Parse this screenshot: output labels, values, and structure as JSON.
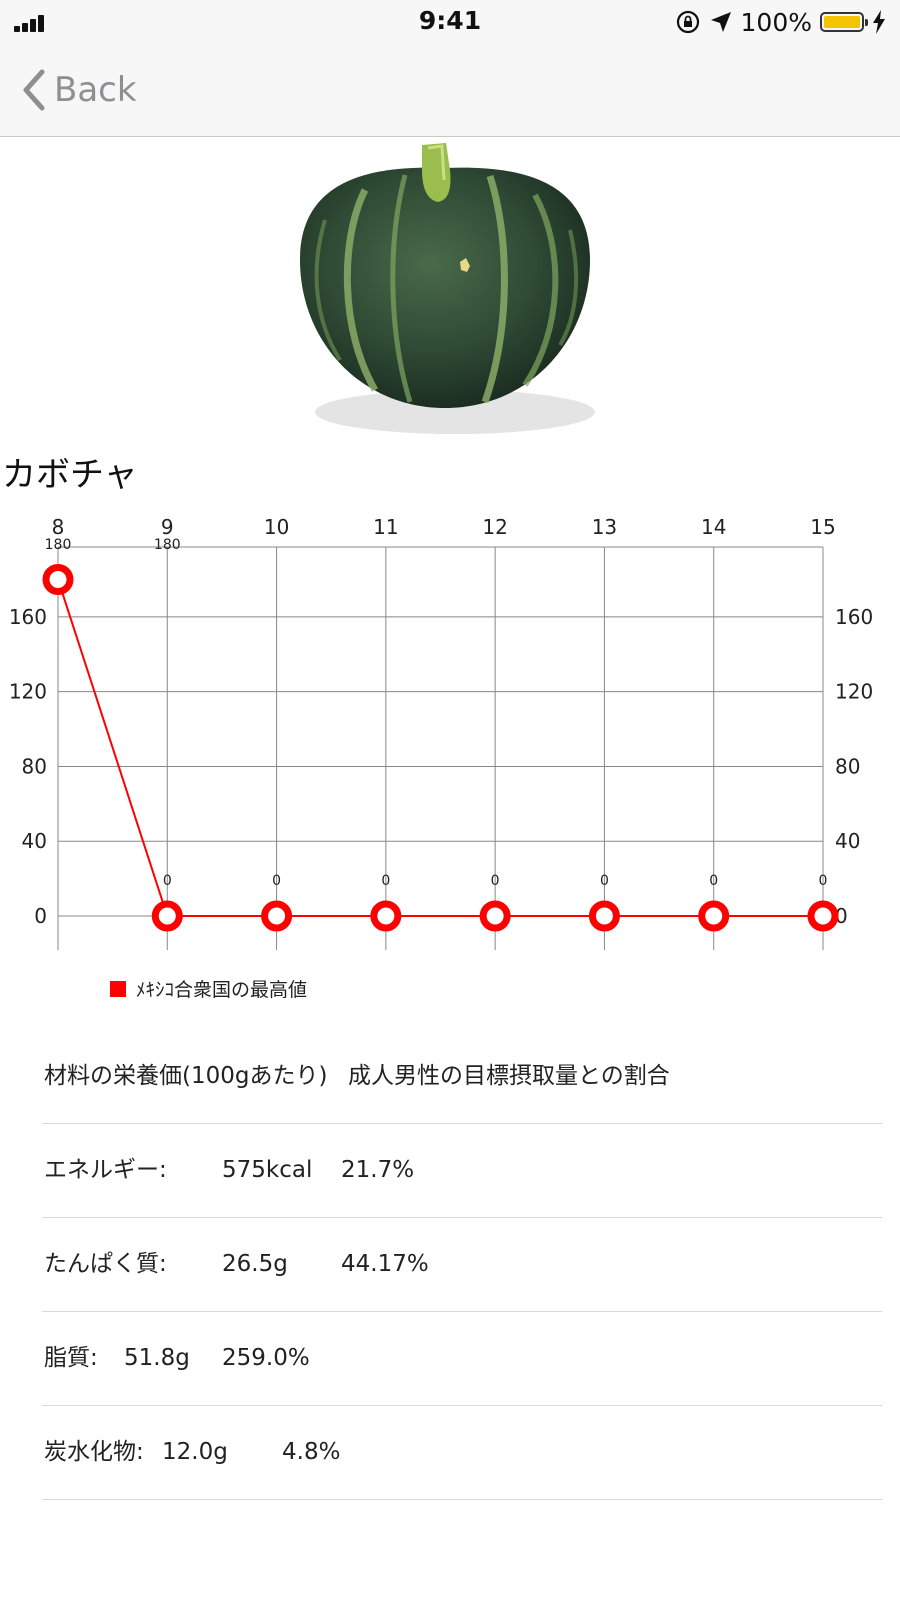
{
  "status_bar": {
    "time": "9:41",
    "battery_text": "100%",
    "battery_color": "#f5c400"
  },
  "nav": {
    "back_label": "Back"
  },
  "product": {
    "image_icon": "pumpkin-image",
    "title": "カボチャ"
  },
  "chart_data": {
    "type": "line",
    "x": [
      8,
      9,
      10,
      11,
      12,
      13,
      14,
      15
    ],
    "series": [
      {
        "name": "ﾒｷｼｺ合衆国の最高値",
        "values": [
          180,
          0,
          0,
          0,
          0,
          0,
          0,
          0
        ],
        "color": "#ff0000"
      }
    ],
    "data_labels": [
      "180",
      "0",
      "0",
      "0",
      "0",
      "0",
      "0",
      "0"
    ],
    "top_sublabels": [
      "180",
      "180"
    ],
    "x_ticks": [
      "8",
      "9",
      "10",
      "11",
      "12",
      "13",
      "14",
      "15"
    ],
    "y_ticks": [
      0,
      40,
      80,
      120,
      160
    ],
    "ylim": [
      -18,
      199
    ],
    "grid": true,
    "legend_position": "bottom-left"
  },
  "nutrition": {
    "header": [
      "材料の栄養価(100gあたり)",
      "成人男性の目標摂取量との割合"
    ],
    "rows": [
      {
        "label": "エネルギー:",
        "amount": "575kcal",
        "percent": "21.7%"
      },
      {
        "label": "たんぱく質:",
        "amount": "26.5g",
        "percent": "44.17%"
      },
      {
        "label": "脂質:",
        "amount": "51.8g",
        "percent": "259.0%"
      },
      {
        "label": "炭水化物:",
        "amount": "12.0g",
        "percent": "4.8%"
      }
    ]
  }
}
